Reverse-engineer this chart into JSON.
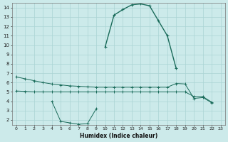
{
  "xlabel": "Humidex (Indice chaleur)",
  "bg_color": "#cceaea",
  "line_color": "#1a6b5a",
  "grid_color": "#aad4d4",
  "xlim": [
    -0.5,
    23.5
  ],
  "ylim": [
    1.5,
    14.5
  ],
  "x": [
    0,
    1,
    2,
    3,
    4,
    5,
    6,
    7,
    8,
    9,
    10,
    11,
    12,
    13,
    14,
    15,
    16,
    17,
    18,
    19,
    20,
    21,
    22,
    23
  ],
  "line1": [
    6.6,
    6.4,
    6.2,
    6.0,
    5.85,
    5.75,
    5.65,
    5.6,
    5.55,
    5.5,
    5.5,
    5.5,
    5.5,
    5.5,
    5.5,
    5.5,
    5.5,
    5.5,
    5.9,
    5.85,
    4.3,
    4.4,
    3.85,
    999
  ],
  "line2": [
    5.1,
    5.05,
    5.0,
    5.0,
    5.0,
    5.0,
    5.0,
    5.0,
    5.0,
    5.0,
    5.0,
    5.0,
    5.0,
    5.0,
    5.0,
    5.0,
    5.0,
    5.0,
    5.0,
    5.0,
    4.5,
    4.5,
    3.9,
    999
  ],
  "line3": [
    999,
    999,
    999,
    999,
    999,
    999,
    999,
    999,
    999,
    999,
    9.8,
    13.2,
    13.8,
    14.3,
    14.4,
    14.2,
    12.6,
    11.0,
    7.5,
    999,
    999,
    999,
    999,
    999
  ],
  "line4": [
    999,
    999,
    999,
    999,
    4.0,
    1.85,
    1.7,
    1.55,
    1.6,
    3.2,
    999,
    999,
    999,
    999,
    999,
    999,
    999,
    999,
    999,
    999,
    999,
    999,
    999,
    999
  ],
  "yticks": [
    2,
    3,
    4,
    5,
    6,
    7,
    8,
    9,
    10,
    11,
    12,
    13,
    14
  ],
  "xticks": [
    0,
    1,
    2,
    3,
    4,
    5,
    6,
    7,
    8,
    9,
    10,
    11,
    12,
    13,
    14,
    15,
    16,
    17,
    18,
    19,
    20,
    21,
    22,
    23
  ]
}
